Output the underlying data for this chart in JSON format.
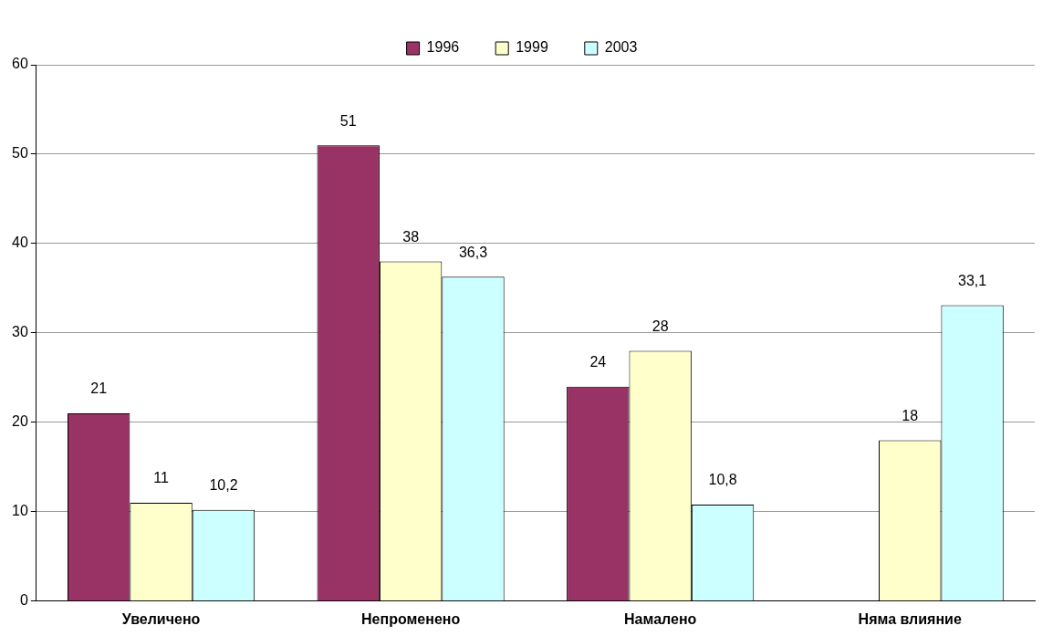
{
  "chart_data": {
    "type": "bar",
    "categories": [
      "Увеличено",
      "Непроменено",
      "Намалено",
      "Няма влияние"
    ],
    "series": [
      {
        "name": "1996",
        "color": "#993366",
        "values": [
          21,
          51,
          24,
          null
        ],
        "value_labels": [
          "21",
          "51",
          "24",
          null
        ]
      },
      {
        "name": "1999",
        "color": "#ffffcc",
        "values": [
          11,
          38,
          28,
          18
        ],
        "value_labels": [
          "11",
          "38",
          "28",
          "18"
        ]
      },
      {
        "name": "2003",
        "color": "#ccffff",
        "values": [
          10.2,
          36.3,
          10.8,
          33.1
        ],
        "value_labels": [
          "10,2",
          "36,3",
          "10,8",
          "33,1"
        ]
      }
    ],
    "ylim": [
      0,
      60
    ],
    "yticks": [
      0,
      10,
      20,
      30,
      40,
      50,
      60
    ],
    "grid": "y",
    "legend": "top"
  }
}
